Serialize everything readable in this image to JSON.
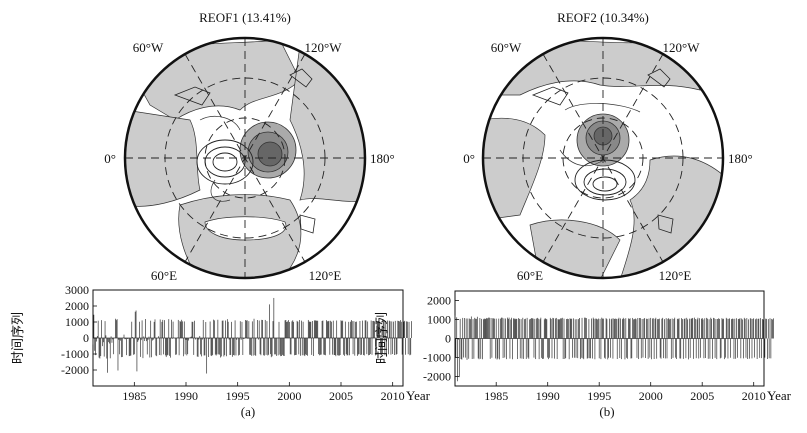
{
  "maps": [
    {
      "id": "a",
      "title": "REOF1 (13.41%)",
      "lon_labels": {
        "w60": "60°W",
        "w120": "120°W",
        "zero": "0°",
        "d180": "180°",
        "e60": "60°E",
        "e120": "120°E"
      }
    },
    {
      "id": "b",
      "title": "REOF2 (10.34%)",
      "lon_labels": {
        "w60": "60°W",
        "w120": "120°W",
        "zero": "0°",
        "d180": "180°",
        "e60": "60°E",
        "e120": "120°E"
      }
    }
  ],
  "chart_data": [
    {
      "type": "bar",
      "panel_label": "(a)",
      "ylabel": "时间序列",
      "xlabel": "Year",
      "xlim": [
        1981,
        2011
      ],
      "ylim": [
        -3000,
        3000
      ],
      "yticks": [
        -2000,
        -1000,
        0,
        1000,
        2000,
        3000
      ],
      "xticks": [
        1985,
        1990,
        1995,
        2000,
        2005,
        2010
      ],
      "values_monthly_1981_2010": [
        -404,
        1450,
        -800,
        -1072,
        -220,
        124,
        1083,
        -1226,
        -1280,
        -1126,
        1117,
        -510,
        -262,
        -1162,
        1051,
        166,
        -1283,
        -2172,
        -255,
        -342,
        -1269,
        101,
        -294,
        -81,
        -1013,
        11,
        1202,
        1116,
        1183,
        -2034,
        -110,
        -1017,
        -167,
        -1198,
        -1187,
        34,
        210,
        -69,
        -72,
        -1071,
        -62,
        -44,
        -1131,
        -1121,
        -1093,
        1018,
        60,
        -1050,
        -1017,
        1640,
        1715,
        -2083,
        -241,
        -137,
        1014,
        -1176,
        -132,
        1104,
        -1254,
        104,
        -186,
        1190,
        -192,
        -1026,
        -108,
        89,
        -1219,
        1082,
        -1206,
        -157,
        -106,
        1005,
        1162,
        -1088,
        -1134,
        -11,
        108,
        -1063,
        1160,
        -1079,
        1010,
        1133,
        -1027,
        1121,
        -1084,
        -1191,
        -1091,
        -1058,
        1180,
        -1115,
        -1228,
        1138,
        -48,
        1027,
        12,
        -20,
        -1049,
        -1034,
        34,
        1130,
        -1077,
        1058,
        1018,
        1138,
        1036,
        -1142,
        1036,
        -1024,
        -118,
        -1086,
        -1001,
        -159,
        15,
        46,
        89,
        1016,
        1009,
        -1058,
        1075,
        -91,
        -15,
        -1156,
        -1177,
        -92,
        127,
        -1024,
        -1152,
        -97,
        1127,
        -1091,
        -1089,
        1000,
        -2221,
        -24,
        -1191,
        -69,
        1034,
        -1090,
        -1128,
        -1059,
        1150,
        1099,
        -1037,
        -1094,
        -1025,
        1138,
        -1023,
        -1037,
        -1217,
        -1150,
        1080,
        1094,
        -1155,
        -1070,
        1096,
        -1142,
        1178,
        1014,
        -103,
        -1063,
        -1059,
        1008,
        -1169,
        -1061,
        -1090,
        1103,
        -1085,
        -111,
        30,
        -1097,
        -1051,
        1051,
        -116,
        1008,
        -1062,
        -61,
        -41,
        1128,
        1089,
        1111,
        -58,
        1057,
        -1044,
        -1055,
        -1110,
        1038,
        -1100,
        1200,
        -1068,
        -1114,
        -27,
        1126,
        -97,
        1093,
        -1009,
        -1081,
        1134,
        1125,
        -1081,
        -1098,
        1129,
        -1055,
        1057,
        -1090,
        -1048,
        2100,
        -1011,
        -1199,
        -1142,
        1053,
        2503,
        -1023,
        -1020,
        -1116,
        -16,
        -1084,
        1005,
        -1040,
        -1133,
        -1125,
        -1055,
        -1107,
        -1125,
        1104,
        1124,
        1000,
        1030,
        1115,
        1000,
        -1017,
        -1035,
        1041,
        1108,
        1005,
        -1079,
        -1066,
        -1055,
        1074,
        1018,
        -1020,
        1126,
        -1110,
        1089,
        -1079,
        1016,
        -1075,
        -1130,
        -1023,
        -1061,
        -1106,
        1128,
        1035,
        1006,
        1012,
        -1057,
        1062,
        -1123,
        1095,
        1114,
        1068,
        1096,
        1072,
        -1010,
        -1076,
        -1048,
        -1037,
        1062,
        1090,
        -1038,
        -1055,
        -1082,
        1117,
        1041,
        1050,
        1071,
        -1047,
        1076,
        1015,
        -1041,
        1083,
        -1059,
        -1064,
        -1136,
        1094,
        -1075,
        -1091,
        -1101,
        -1066,
        1106,
        1054,
        1089,
        -1049,
        -1118,
        1026,
        -1009,
        -1087,
        -1075,
        1010,
        -1081,
        1014,
        1124,
        1054,
        -1008,
        1051,
        -1102,
        1005,
        1022,
        -1119,
        -1029,
        -1006,
        1066,
        -1065,
        -1039,
        1089,
        -1066,
        -1092,
        1098,
        1100,
        -1009,
        1031,
        -1082,
        -1060,
        -1003,
        1096,
        -1049,
        1065,
        1067,
        1040,
        -1084,
        -1045,
        1032,
        1054,
        1078,
        1009,
        -1030,
        -1069,
        -1010,
        1055,
        1127,
        -1079,
        1069,
        -1012,
        1097,
        -1016,
        1086,
        1050,
        -1041,
        1039,
        -1002,
        1020,
        -1066,
        1070,
        -1048,
        -1002,
        1080,
        1063,
        1042,
        1118,
        1012,
        -1040,
        -1073,
        1022,
        1072,
        -1049,
        1038,
        1023,
        -1015,
        1009,
        -1079,
        -1042,
        1057
      ]
    },
    {
      "type": "bar",
      "panel_label": "(b)",
      "ylabel": "时间序列",
      "xlabel": "Year",
      "xlim": [
        1981,
        2011
      ],
      "ylim": [
        -2500,
        2500
      ],
      "yticks": [
        -2000,
        -1000,
        0,
        1000,
        2000
      ],
      "xticks": [
        1985,
        1990,
        1995,
        2000,
        2005,
        2010
      ],
      "values_monthly_1981_2010": [
        1217,
        -1006,
        1114,
        -2250,
        -61,
        -2034,
        1036,
        -1080,
        -1112,
        1084,
        -1001,
        1079,
        -1005,
        1052,
        -1126,
        1055,
        -1066,
        1048,
        1021,
        1160,
        -1080,
        1019,
        -1063,
        1088,
        1038,
        1032,
        1144,
        -1047,
        -1093,
        1081,
        -1071,
        1034,
        -1095,
        1011,
        1051,
        1017,
        1037,
        1083,
        1062,
        1100,
        1095,
        -1069,
        1082,
        -1013,
        1064,
        1062,
        1049,
        -1050,
        1045,
        -1107,
        -1051,
        1047,
        -1096,
        1047,
        1099,
        1093,
        -1024,
        1058,
        -1003,
        1052,
        -1086,
        1099,
        1028,
        1098,
        -1060,
        1003,
        1094,
        -1090,
        1058,
        1051,
        1016,
        1045,
        1028,
        -1080,
        1072,
        1035,
        -1044,
        1021,
        -1062,
        1090,
        -1073,
        1021,
        1042,
        -1076,
        1088,
        -1003,
        -1068,
        1006,
        1032,
        1072,
        1065,
        1046,
        -1006,
        1034,
        -1082,
        1050,
        1083,
        1042,
        -1087,
        1016,
        1096,
        -1019,
        -1082,
        -1069,
        1007,
        1072,
        1034,
        1012,
        -1005,
        -1087,
        -1014,
        1087,
        1028,
        -1039,
        1087,
        1067,
        -1061,
        1055,
        1083,
        -1076,
        1017,
        1003,
        1011,
        1060,
        1059,
        1090,
        -1082,
        1049,
        -1077,
        -1028,
        1025,
        1040,
        1023,
        -1090,
        1064,
        1024,
        1044,
        -1014,
        1058,
        -1012,
        1010,
        -1016,
        1018,
        -1033,
        1017,
        1081,
        -1083,
        -1016,
        1088,
        -1042,
        -1089,
        1099,
        1093,
        1074,
        -1061,
        -1034,
        1022,
        -1038,
        -1039,
        1052,
        -1054,
        1098,
        1034,
        -1090,
        1047,
        1041,
        1008,
        1050,
        -1044,
        1033,
        -1087,
        1097,
        1048,
        1043,
        -1016,
        -1066,
        1072,
        1022,
        -1098,
        -1016,
        1044,
        -1012,
        1017,
        1056,
        -1062,
        1059,
        1028,
        1046,
        1035,
        -1079,
        1031,
        1093,
        -1026,
        1055,
        -1086,
        1018,
        1089,
        1030,
        -1099,
        1070,
        -1015,
        -1063,
        1057,
        1024,
        1066,
        -1051,
        -1039,
        1082,
        1005,
        1023,
        1055,
        1012,
        -1021,
        1080,
        -1081,
        1078,
        1070,
        -1038,
        1024,
        -1001,
        1037,
        1077,
        -1028,
        1041,
        1032,
        -1073,
        1053,
        -1005,
        1085,
        -1089,
        1050,
        1064,
        -1080,
        1031,
        1094,
        -1062,
        1017,
        1022,
        1048,
        -1004,
        -1063,
        1042,
        1087,
        -1031,
        1020,
        -1050,
        1073,
        -1047,
        1034,
        1070,
        1009,
        1034,
        -1077,
        1055,
        -1023,
        1026,
        1096,
        -1009,
        -1082,
        1037,
        1016,
        1068,
        -1048,
        -1056,
        1071,
        1018,
        -1073,
        1031,
        1057,
        -1036,
        1088,
        1006,
        -1097,
        1045,
        -1020,
        1041,
        1061,
        1082,
        -1071,
        1096,
        1024,
        -1036,
        1005,
        1089,
        -1052,
        1063,
        -1011,
        1038,
        1076,
        1002,
        -1042,
        1063,
        -1025,
        1084,
        1049,
        -1069,
        1016,
        -1058,
        1095,
        1033,
        -1073,
        1088,
        1062,
        -1018,
        1029,
        -1084,
        1027,
        1060,
        1033,
        -1048,
        -1013,
        1074,
        1015,
        1039,
        -1083,
        -1005,
        1087,
        1041,
        -1052,
        1034,
        1060,
        -1012,
        1019,
        1047,
        1036,
        -1071,
        1040,
        -1067,
        1066,
        -1010,
        1029,
        1019,
        1074,
        -1042,
        1053,
        1001,
        -1047,
        1088,
        1036,
        -1016,
        1075,
        -1079,
        1007,
        -1057,
        1069,
        1037,
        -1045,
        1029,
        1064,
        -1003,
        1011,
        1052,
        -1082,
        1035,
        1045,
        -1018,
        1073,
        -1031,
        1027,
        1003,
        1056,
        -1006,
        1044,
        1033,
        -1076,
        1021,
        -1039,
        1067,
        -1048,
        1031,
        1001,
        1058
      ]
    }
  ]
}
